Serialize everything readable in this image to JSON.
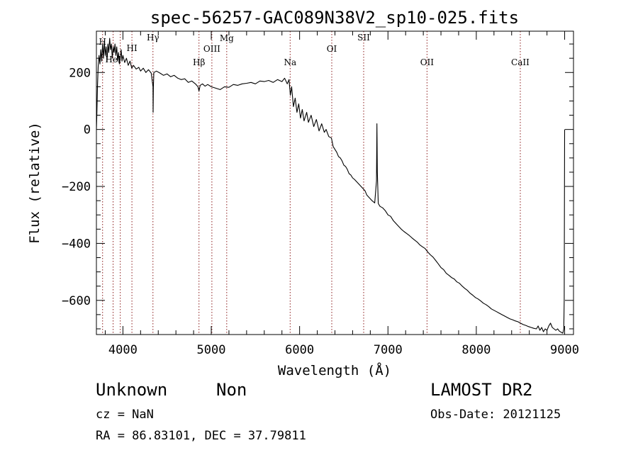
{
  "chart_data": {
    "type": "line",
    "title": "spec-56257-GAC089N38V2_sp10-025.fits",
    "xlabel": "Wavelength (Å)",
    "ylabel": "Flux (relative)",
    "xlim": [
      3700,
      9100
    ],
    "ylim": [
      -720,
      345
    ],
    "xticks": [
      4000,
      5000,
      6000,
      7000,
      8000,
      9000
    ],
    "yticks": [
      -600,
      -400,
      -200,
      0,
      200
    ],
    "grid": false,
    "series": [
      {
        "values": [
          [
            3700,
            0
          ],
          [
            3705,
            50
          ],
          [
            3712,
            150
          ],
          [
            3720,
            220
          ],
          [
            3730,
            260
          ],
          [
            3740,
            230
          ],
          [
            3750,
            280
          ],
          [
            3760,
            240
          ],
          [
            3770,
            300
          ],
          [
            3780,
            250
          ],
          [
            3790,
            310
          ],
          [
            3800,
            260
          ],
          [
            3810,
            290
          ],
          [
            3820,
            240
          ],
          [
            3830,
            300
          ],
          [
            3840,
            270
          ],
          [
            3850,
            320
          ],
          [
            3860,
            280
          ],
          [
            3870,
            300
          ],
          [
            3880,
            250
          ],
          [
            3890,
            290
          ],
          [
            3900,
            270
          ],
          [
            3910,
            300
          ],
          [
            3920,
            260
          ],
          [
            3930,
            290
          ],
          [
            3940,
            240
          ],
          [
            3950,
            270
          ],
          [
            3960,
            230
          ],
          [
            3970,
            250
          ],
          [
            3980,
            280
          ],
          [
            3990,
            240
          ],
          [
            4000,
            260
          ],
          [
            4020,
            235
          ],
          [
            4040,
            250
          ],
          [
            4060,
            225
          ],
          [
            4080,
            240
          ],
          [
            4100,
            215
          ],
          [
            4120,
            225
          ],
          [
            4150,
            212
          ],
          [
            4180,
            218
          ],
          [
            4200,
            205
          ],
          [
            4230,
            215
          ],
          [
            4260,
            200
          ],
          [
            4290,
            210
          ],
          [
            4320,
            198
          ],
          [
            4340,
            150
          ],
          [
            4342,
            60
          ],
          [
            4345,
            150
          ],
          [
            4350,
            200
          ],
          [
            4380,
            205
          ],
          [
            4420,
            198
          ],
          [
            4460,
            190
          ],
          [
            4500,
            195
          ],
          [
            4540,
            185
          ],
          [
            4580,
            190
          ],
          [
            4620,
            180
          ],
          [
            4660,
            175
          ],
          [
            4700,
            178
          ],
          [
            4740,
            165
          ],
          [
            4780,
            170
          ],
          [
            4820,
            160
          ],
          [
            4850,
            150
          ],
          [
            4861,
            135
          ],
          [
            4875,
            155
          ],
          [
            4900,
            160
          ],
          [
            4930,
            152
          ],
          [
            4960,
            158
          ],
          [
            5000,
            150
          ],
          [
            5050,
            145
          ],
          [
            5100,
            140
          ],
          [
            5150,
            150
          ],
          [
            5200,
            148
          ],
          [
            5250,
            158
          ],
          [
            5300,
            155
          ],
          [
            5350,
            160
          ],
          [
            5400,
            162
          ],
          [
            5450,
            165
          ],
          [
            5500,
            160
          ],
          [
            5550,
            170
          ],
          [
            5600,
            168
          ],
          [
            5650,
            172
          ],
          [
            5700,
            165
          ],
          [
            5750,
            175
          ],
          [
            5800,
            168
          ],
          [
            5830,
            180
          ],
          [
            5860,
            160
          ],
          [
            5880,
            175
          ],
          [
            5895,
            120
          ],
          [
            5910,
            150
          ],
          [
            5930,
            80
          ],
          [
            5950,
            110
          ],
          [
            5970,
            60
          ],
          [
            5990,
            90
          ],
          [
            6010,
            40
          ],
          [
            6030,
            70
          ],
          [
            6050,
            30
          ],
          [
            6080,
            60
          ],
          [
            6100,
            25
          ],
          [
            6130,
            50
          ],
          [
            6160,
            10
          ],
          [
            6190,
            35
          ],
          [
            6220,
            -5
          ],
          [
            6250,
            20
          ],
          [
            6280,
            -10
          ],
          [
            6300,
            0
          ],
          [
            6330,
            -25
          ],
          [
            6360,
            -30
          ],
          [
            6380,
            -60
          ],
          [
            6400,
            -70
          ],
          [
            6420,
            -80
          ],
          [
            6440,
            -95
          ],
          [
            6460,
            -100
          ],
          [
            6480,
            -110
          ],
          [
            6500,
            -125
          ],
          [
            6520,
            -130
          ],
          [
            6540,
            -140
          ],
          [
            6560,
            -155
          ],
          [
            6580,
            -160
          ],
          [
            6600,
            -170
          ],
          [
            6620,
            -175
          ],
          [
            6650,
            -185
          ],
          [
            6680,
            -195
          ],
          [
            6710,
            -205
          ],
          [
            6740,
            -215
          ],
          [
            6760,
            -230
          ],
          [
            6790,
            -240
          ],
          [
            6820,
            -250
          ],
          [
            6850,
            -258
          ],
          [
            6870,
            -180
          ],
          [
            6875,
            20
          ],
          [
            6880,
            -150
          ],
          [
            6890,
            -260
          ],
          [
            6910,
            -270
          ],
          [
            6940,
            -275
          ],
          [
            6970,
            -285
          ],
          [
            7000,
            -300
          ],
          [
            7030,
            -305
          ],
          [
            7060,
            -320
          ],
          [
            7090,
            -330
          ],
          [
            7120,
            -340
          ],
          [
            7150,
            -350
          ],
          [
            7180,
            -358
          ],
          [
            7210,
            -365
          ],
          [
            7240,
            -372
          ],
          [
            7270,
            -380
          ],
          [
            7300,
            -388
          ],
          [
            7330,
            -395
          ],
          [
            7360,
            -405
          ],
          [
            7390,
            -412
          ],
          [
            7420,
            -418
          ],
          [
            7450,
            -430
          ],
          [
            7480,
            -440
          ],
          [
            7510,
            -448
          ],
          [
            7540,
            -460
          ],
          [
            7570,
            -472
          ],
          [
            7600,
            -485
          ],
          [
            7630,
            -492
          ],
          [
            7660,
            -505
          ],
          [
            7690,
            -512
          ],
          [
            7720,
            -520
          ],
          [
            7750,
            -525
          ],
          [
            7780,
            -535
          ],
          [
            7810,
            -540
          ],
          [
            7840,
            -550
          ],
          [
            7870,
            -558
          ],
          [
            7900,
            -565
          ],
          [
            7930,
            -575
          ],
          [
            7960,
            -582
          ],
          [
            7990,
            -590
          ],
          [
            8020,
            -595
          ],
          [
            8050,
            -602
          ],
          [
            8080,
            -610
          ],
          [
            8110,
            -615
          ],
          [
            8140,
            -622
          ],
          [
            8170,
            -630
          ],
          [
            8200,
            -635
          ],
          [
            8230,
            -640
          ],
          [
            8260,
            -645
          ],
          [
            8290,
            -650
          ],
          [
            8320,
            -655
          ],
          [
            8350,
            -660
          ],
          [
            8380,
            -665
          ],
          [
            8410,
            -668
          ],
          [
            8440,
            -672
          ],
          [
            8470,
            -675
          ],
          [
            8500,
            -680
          ],
          [
            8530,
            -685
          ],
          [
            8560,
            -688
          ],
          [
            8590,
            -692
          ],
          [
            8620,
            -695
          ],
          [
            8650,
            -698
          ],
          [
            8680,
            -700
          ],
          [
            8700,
            -690
          ],
          [
            8720,
            -705
          ],
          [
            8740,
            -695
          ],
          [
            8760,
            -710
          ],
          [
            8780,
            -700
          ],
          [
            8800,
            -705
          ],
          [
            8820,
            -690
          ],
          [
            8840,
            -680
          ],
          [
            8860,
            -695
          ],
          [
            8880,
            -700
          ],
          [
            8900,
            -705
          ],
          [
            8920,
            -700
          ],
          [
            8940,
            -708
          ],
          [
            8960,
            -712
          ],
          [
            8980,
            -715
          ],
          [
            8990,
            -700
          ],
          [
            8995,
            -600
          ],
          [
            8998,
            -200
          ],
          [
            9000,
            0
          ]
        ]
      }
    ],
    "lines": [
      {
        "label": "H",
        "x": 3770
      },
      {
        "label": "HeI",
        "x": 3889
      },
      {
        "label": "",
        "x": 3970
      },
      {
        "label": "HI",
        "x": 4102
      },
      {
        "label": "Hγ",
        "x": 4340
      },
      {
        "label": "Hβ",
        "x": 4861
      },
      {
        "label": "OIII",
        "x": 5007
      },
      {
        "label": "Mg",
        "x": 5175
      },
      {
        "label": "Na",
        "x": 5893
      },
      {
        "label": "OI",
        "x": 6364
      },
      {
        "label": "SII",
        "x": 6725
      },
      {
        "label": "OII",
        "x": 7442
      },
      {
        "label": "CaII",
        "x": 8498
      }
    ]
  },
  "footer": {
    "left_line1_a": "Unknown",
    "left_line1_b": "Non",
    "cz": "cz = NaN",
    "radec": "RA =  86.83101, DEC =  37.79811",
    "survey": "LAMOST DR2",
    "obs_date": "Obs-Date: 20121125"
  }
}
